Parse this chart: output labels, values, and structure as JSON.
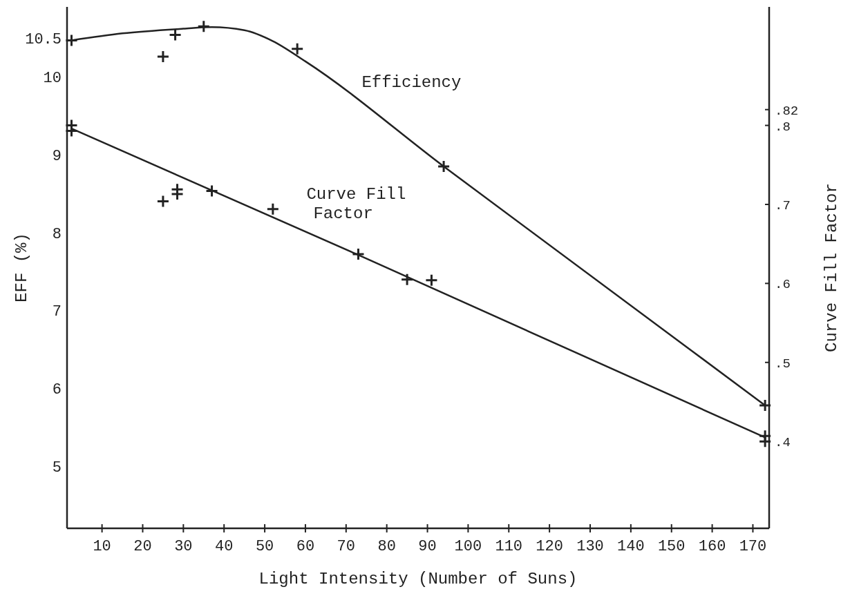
{
  "chart_data": {
    "type": "scatter",
    "xlabel": "Light Intensity (Number of Suns)",
    "ylabel": "EFF (%)",
    "y2label": "Curve Fill Factor",
    "xlim": [
      1.4,
      174
    ],
    "xticks": [
      10,
      20,
      30,
      40,
      50,
      60,
      70,
      80,
      90,
      100,
      110,
      120,
      130,
      140,
      150,
      160,
      170
    ],
    "ylim": [
      4.2,
      10.9
    ],
    "yticks": [
      5,
      6,
      7,
      8,
      9,
      10,
      10.5
    ],
    "y2lim": [
      0.29,
      0.95
    ],
    "y2ticks": [
      {
        "value": 0.4,
        "label": ".4"
      },
      {
        "value": 0.5,
        "label": ".5"
      },
      {
        "value": 0.6,
        "label": ".6"
      },
      {
        "value": 0.7,
        "label": ".7"
      },
      {
        "value": 0.8,
        "label": ".8"
      },
      {
        "value": 0.82,
        "label": ".82"
      }
    ],
    "grid": false,
    "legend": false,
    "marker": "cross",
    "line_style": "solid",
    "series": [
      {
        "color": "#222222",
        "x": [
          2.5,
          25,
          28,
          35,
          58,
          94,
          173
        ],
        "values": [
          10.47,
          10.26,
          10.54,
          10.65,
          10.36,
          8.85,
          5.78
        ]
      },
      {
        "type": "line",
        "name": "Efficiency",
        "color": "#222222",
        "marker": "none",
        "x": [
          2.5,
          15,
          30,
          37,
          45,
          52,
          60,
          94,
          173
        ],
        "values": [
          10.47,
          10.56,
          10.62,
          10.64,
          10.6,
          10.46,
          10.2,
          8.85,
          5.78
        ]
      },
      {
        "axis": "y2",
        "color": "#222222",
        "x": [
          2.5,
          2.5,
          25,
          28.5,
          28.5,
          37,
          52,
          73,
          85,
          91,
          173,
          173
        ],
        "values": [
          0.8,
          0.793,
          0.704,
          0.719,
          0.713,
          0.717,
          0.694,
          0.637,
          0.605,
          0.604,
          0.407,
          0.4
        ]
      },
      {
        "type": "line",
        "axis": "y2",
        "name": "Curve Fill Factor",
        "color": "#222222",
        "marker": "none",
        "x": [
          2.5,
          73,
          173
        ],
        "values": [
          0.796,
          0.636,
          0.405
        ]
      }
    ]
  }
}
